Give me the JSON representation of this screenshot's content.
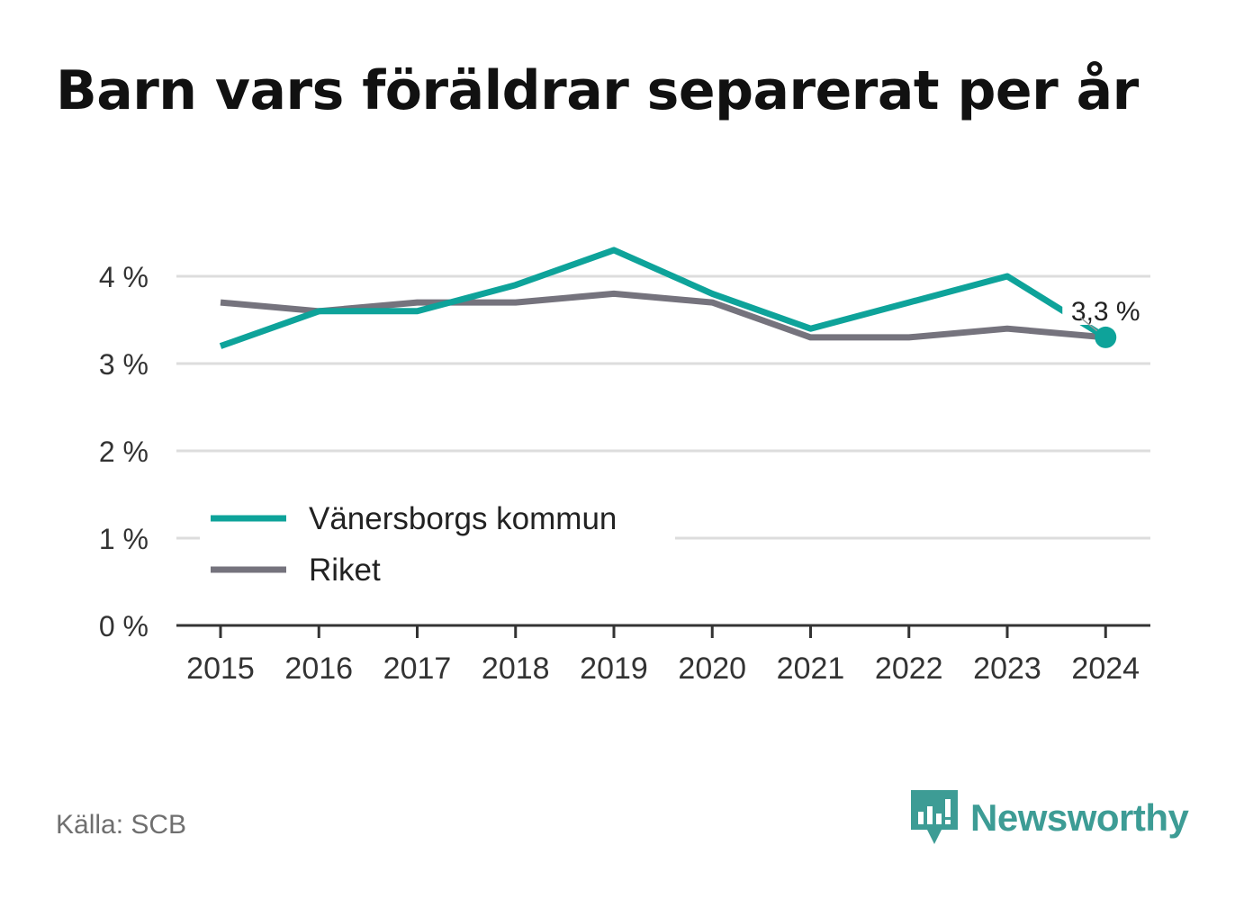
{
  "title": "Barn vars föräldrar separerat per år",
  "source": "Källa: SCB",
  "brand": {
    "name": "Newsworthy",
    "icon": "newsworthy-logo-icon",
    "color": "#3d9c95"
  },
  "chart_data": {
    "type": "line",
    "x": [
      "2015",
      "2016",
      "2017",
      "2018",
      "2019",
      "2020",
      "2021",
      "2022",
      "2023",
      "2024"
    ],
    "ylim": [
      0,
      4.5
    ],
    "yticks": [
      0,
      1,
      2,
      3,
      4
    ],
    "ytick_labels": [
      "0 %",
      "1 %",
      "2 %",
      "3 %",
      "4 %"
    ],
    "grid": true,
    "legend": "bottom-left",
    "series": [
      {
        "name": "Vänersborgs kommun",
        "color": "#0ea39a",
        "values": [
          3.2,
          3.6,
          3.6,
          3.9,
          4.3,
          3.8,
          3.4,
          3.7,
          4.0,
          3.3
        ]
      },
      {
        "name": "Riket",
        "color": "#75737d",
        "values": [
          3.7,
          3.6,
          3.7,
          3.7,
          3.8,
          3.7,
          3.3,
          3.3,
          3.4,
          3.3
        ]
      }
    ],
    "annotation": {
      "label": "3,3 %",
      "series": 0,
      "index": 9
    }
  }
}
